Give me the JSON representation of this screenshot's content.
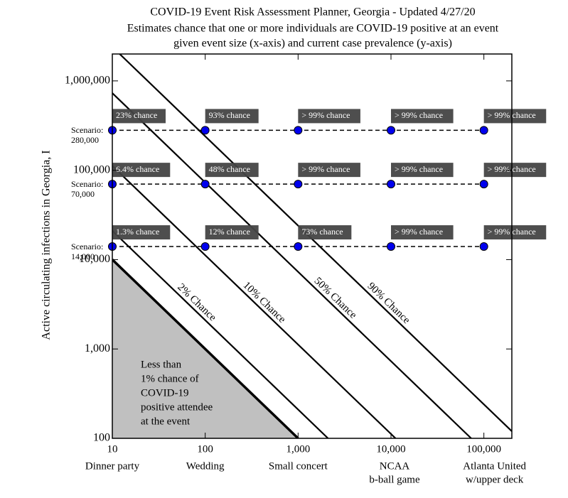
{
  "chart_data": {
    "type": "line",
    "title": "COVID-19 Event Risk Assessment Planner, Georgia - Updated 4/27/20",
    "subtitle": [
      "Estimates chance that one or more individuals are COVID-19 positive at an event",
      "given event size (x-axis) and current case prevalence (y-axis)"
    ],
    "ylabel": "Active circulating infections in Georgia, I",
    "log_x": true,
    "log_y": true,
    "xlim": [
      10,
      200000
    ],
    "ylim": [
      100,
      2000000
    ],
    "xticks": [
      10,
      100,
      {
        "value": 1000,
        "label": "1,000"
      },
      {
        "value": 10000,
        "label": "10,000"
      },
      {
        "value": 100000,
        "label": "100,000"
      }
    ],
    "yticks": [
      100,
      {
        "value": 1000,
        "label": "1,000"
      },
      {
        "value": 10000,
        "label": "10,000"
      },
      {
        "value": 100000,
        "label": "100,000"
      },
      {
        "value": 1000000,
        "label": "1,000,000"
      }
    ],
    "event_labels": [
      [
        "Dinner party"
      ],
      [
        "Wedding"
      ],
      [
        "Small concert"
      ],
      [
        "NCAA",
        "b-ball game"
      ],
      [
        "Atlanta United",
        "w/upper deck"
      ]
    ],
    "boundary": {
      "x": [
        10,
        1000
      ],
      "values": [
        10000,
        100
      ],
      "color": "#000000",
      "fill": "#c0c0c0",
      "annotation": [
        "Less than",
        "1% chance of",
        "COVID-19",
        "positive attendee",
        "at the event"
      ]
    },
    "series": [
      {
        "name": "2% Chance",
        "color": "#000000",
        "x": [
          10,
          2100
        ],
        "values": [
          21000,
          100
        ]
      },
      {
        "name": "10% Chance",
        "color": "#000000",
        "x": [
          10,
          11200
        ],
        "values": [
          112000,
          100
        ]
      },
      {
        "name": "50% Chance",
        "color": "#000000",
        "x": [
          10,
          73000
        ],
        "values": [
          730000,
          100
        ]
      },
      {
        "name": "90% Chance",
        "color": "#000000",
        "x": [
          12,
          200000
        ],
        "values": [
          2000000,
          120
        ]
      }
    ],
    "scenarios": [
      {
        "name": "Scenario:",
        "level": {
          "value": 280000,
          "label": "280,000"
        },
        "color": "#0000ee",
        "x": [
          10,
          100,
          1000,
          10000,
          100000
        ],
        "values": [
          280000,
          280000,
          280000,
          280000,
          280000
        ],
        "chance_labels": [
          "23% chance",
          "93% chance",
          "> 99% chance",
          "> 99% chance",
          "> 99% chance"
        ]
      },
      {
        "name": "Scenario:",
        "level": {
          "value": 70000,
          "label": "70,000"
        },
        "color": "#0000ee",
        "x": [
          10,
          100,
          1000,
          10000,
          100000
        ],
        "values": [
          70000,
          70000,
          70000,
          70000,
          70000
        ],
        "chance_labels": [
          "6.4% chance",
          "48% chance",
          "> 99% chance",
          "> 99% chance",
          "> 99% chance"
        ]
      },
      {
        "name": "Scenario:",
        "level": {
          "value": 14000,
          "label": "14,000"
        },
        "color": "#0000ee",
        "x": [
          10,
          100,
          1000,
          10000,
          100000
        ],
        "values": [
          14000,
          14000,
          14000,
          14000,
          14000
        ],
        "chance_labels": [
          "1.3% chance",
          "12% chance",
          "73% chance",
          "> 99% chance",
          "> 99% chance"
        ]
      }
    ]
  }
}
